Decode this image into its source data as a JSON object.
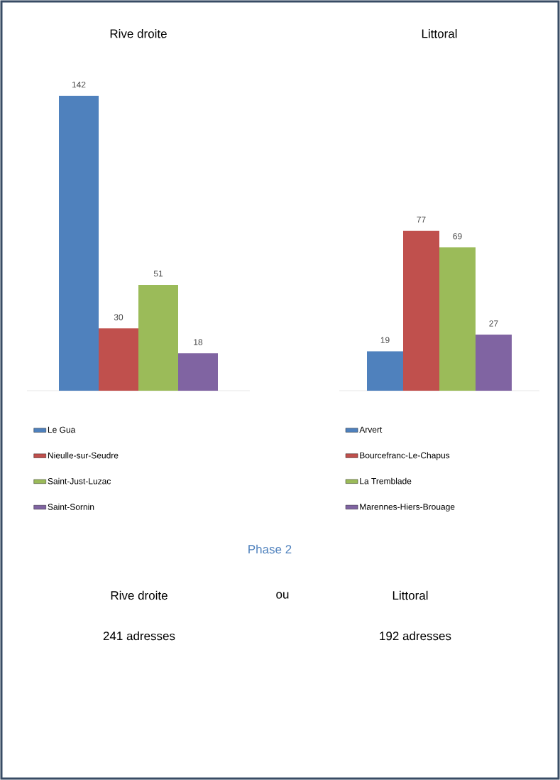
{
  "chart_data": [
    {
      "type": "bar",
      "title": "Rive droite",
      "categories": [
        null
      ],
      "series": [
        {
          "name": "Le Gua",
          "color": "#4f81bd",
          "values": [
            142
          ]
        },
        {
          "name": "Nieulle-sur-Seudre",
          "color": "#c0504d",
          "values": [
            30
          ]
        },
        {
          "name": "Saint-Just-Luzac",
          "color": "#9bbb59",
          "values": [
            51
          ]
        },
        {
          "name": "Saint-Sornin",
          "color": "#8064a2",
          "values": [
            18
          ]
        }
      ],
      "data_labels": true,
      "legend": "bottom"
    },
    {
      "type": "bar",
      "title": "Littoral",
      "categories": [
        null
      ],
      "series": [
        {
          "name": "Arvert",
          "color": "#4f81bd",
          "values": [
            19
          ]
        },
        {
          "name": "Bourcefranc-Le-Chapus",
          "color": "#c0504d",
          "values": [
            77
          ]
        },
        {
          "name": "La Tremblade",
          "color": "#9bbb59",
          "values": [
            69
          ]
        },
        {
          "name": "Marennes-Hiers-Brouage",
          "color": "#8064a2",
          "values": [
            27
          ]
        }
      ],
      "data_labels": true,
      "legend": "bottom"
    },
    {
      "type": "other",
      "annotations": [
        "Phase 2",
        "Rive droite",
        "ou",
        "Littoral",
        "241 adresses",
        "192 adresses"
      ]
    }
  ]
}
